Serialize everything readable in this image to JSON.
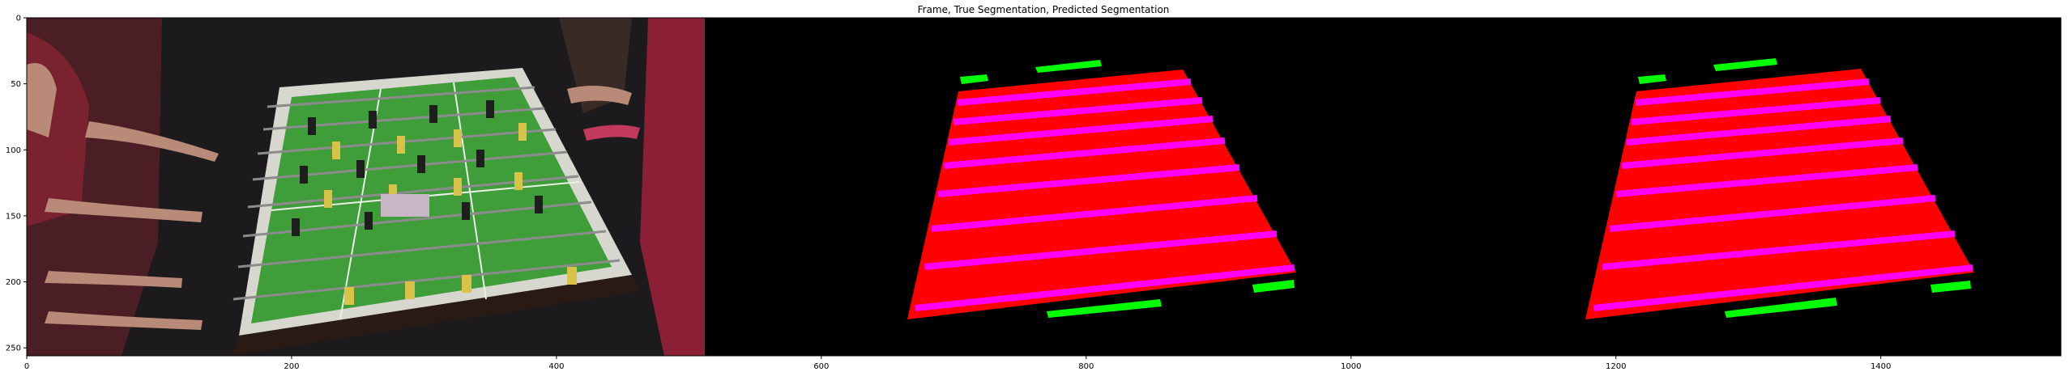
{
  "figure": {
    "title": "Frame, True Segmentation, Predicted Segmentation",
    "x_ticks": [
      0,
      200,
      400,
      600,
      800,
      1000,
      1200,
      1400
    ],
    "y_ticks": [
      0,
      50,
      100,
      150,
      200,
      250
    ],
    "x_range": [
      0,
      1536
    ],
    "y_range": [
      0,
      256
    ]
  },
  "panels": [
    {
      "name": "frame",
      "content": "foosball table video frame"
    },
    {
      "name": "true-segmentation",
      "content": "red table mask with magenta rods and green goal regions"
    },
    {
      "name": "predicted-segmentation",
      "content": "red table mask with magenta rods and green goal regions"
    }
  ],
  "colors": {
    "table": "#ff0000",
    "rod": "#ff00ff",
    "goal": "#00ff00",
    "background": "#000000",
    "field": "#3f9d3a"
  }
}
